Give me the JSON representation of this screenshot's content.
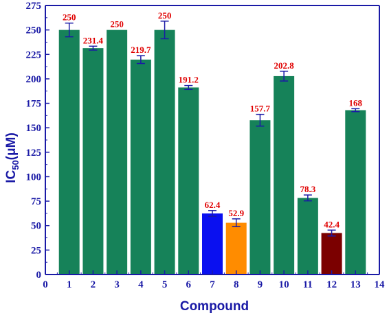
{
  "chart_data": {
    "type": "bar",
    "x": [
      1,
      2,
      3,
      4,
      5,
      6,
      7,
      8,
      9,
      10,
      11,
      12,
      13
    ],
    "values": [
      250,
      231.4,
      250,
      219.7,
      250,
      191.2,
      62.4,
      52.9,
      157.7,
      202.8,
      78.3,
      42.4,
      168
    ],
    "data_labels": [
      "250",
      "231.4",
      "250",
      "219.7",
      "250",
      "191.2",
      "62.4",
      "52.9",
      "157.7",
      "202.8",
      "78.3",
      "42.4",
      "168"
    ],
    "errors": [
      7,
      2,
      0,
      4,
      9,
      2,
      3,
      4,
      6,
      5,
      3,
      3,
      1.5
    ],
    "colors": [
      "#168259",
      "#168259",
      "#168259",
      "#168259",
      "#168259",
      "#168259",
      "#0a10f0",
      "#ff8c00",
      "#168259",
      "#168259",
      "#168259",
      "#7b0000",
      "#168259"
    ],
    "xlabel": "Compound",
    "ylabel": "IC",
    "ylabel_subscript": "50",
    "ylabel_suffix": "(μM)",
    "xlim": [
      0,
      14
    ],
    "ylim": [
      0,
      275
    ],
    "xticks": [
      0,
      1,
      2,
      3,
      4,
      5,
      6,
      7,
      8,
      9,
      10,
      11,
      12,
      13,
      14
    ],
    "yticks": [
      0,
      25,
      50,
      75,
      100,
      125,
      150,
      175,
      200,
      225,
      250,
      275
    ],
    "grid": false,
    "axis_color": "#1a1aa6",
    "label_color": "#e00000",
    "error_bar_color": "#1a1aa6"
  }
}
